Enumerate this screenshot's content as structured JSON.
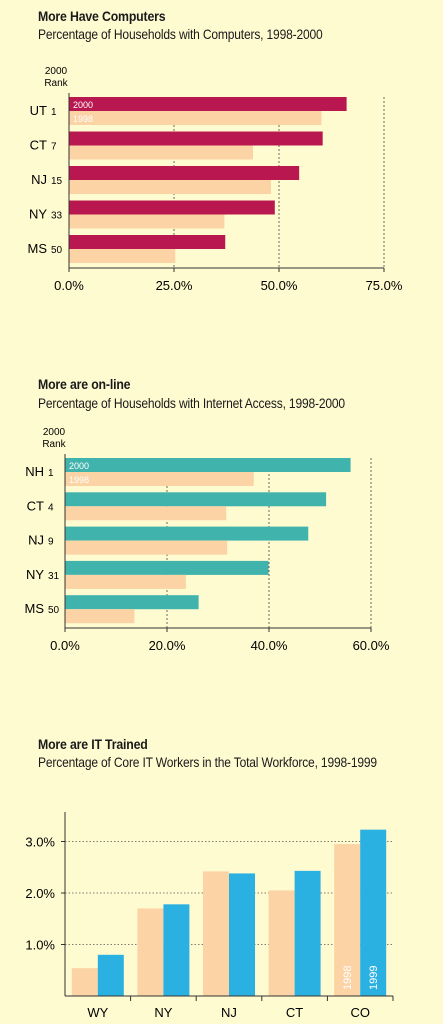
{
  "colors": {
    "background": "#fffbd1",
    "current": "#b8174f",
    "prior": "#fbd3a5",
    "internet": "#41b3ad",
    "it1999": "#2bb0e2"
  },
  "chart_data": [
    {
      "type": "bar",
      "orientation": "horizontal",
      "title": "More Have Computers",
      "subtitle": "Percentage of Households with Computers, 1998-2000",
      "rank_header": [
        "2000",
        "Rank"
      ],
      "categories": [
        "UT",
        "CT",
        "NJ",
        "NY",
        "MS"
      ],
      "ranks": [
        "1",
        "7",
        "15",
        "33",
        "50"
      ],
      "series": [
        {
          "name": "2000",
          "values": [
            66.1,
            60.4,
            54.8,
            49.0,
            37.2
          ]
        },
        {
          "name": "1998",
          "values": [
            60.1,
            43.8,
            48.1,
            37.0,
            25.3
          ]
        }
      ],
      "xticks": [
        "0.0%",
        "25.0%",
        "50.0%",
        "75.0%"
      ],
      "xlim": [
        0,
        75
      ],
      "gridlines": [
        25,
        50,
        75
      ]
    },
    {
      "type": "bar",
      "orientation": "horizontal",
      "title": "More are on-line",
      "subtitle": "Percentage of Households with Internet Access, 1998-2000",
      "rank_header": [
        "2000",
        "Rank"
      ],
      "categories": [
        "NH",
        "CT",
        "NJ",
        "NY",
        "MS"
      ],
      "ranks": [
        "1",
        "4",
        "9",
        "31",
        "50"
      ],
      "series": [
        {
          "name": "2000",
          "values": [
            56.0,
            51.2,
            47.7,
            39.9,
            26.2
          ]
        },
        {
          "name": "1998",
          "values": [
            37.0,
            31.6,
            31.8,
            23.7,
            13.6
          ]
        }
      ],
      "xticks": [
        "0.0%",
        "20.0%",
        "40.0%",
        "60.0%"
      ],
      "xlim": [
        0,
        60
      ],
      "gridlines": [
        20,
        40,
        60
      ]
    },
    {
      "type": "bar",
      "orientation": "vertical",
      "title": "More are IT Trained",
      "subtitle": "Percentage of Core IT Workers in the Total Workforce, 1998-1999",
      "categories": [
        "WY",
        "NY",
        "NJ",
        "CT",
        "CO"
      ],
      "series": [
        {
          "name": "1998",
          "values": [
            0.54,
            1.7,
            2.42,
            2.05,
            2.95
          ]
        },
        {
          "name": "1999",
          "values": [
            0.8,
            1.78,
            2.38,
            2.43,
            3.23
          ]
        }
      ],
      "yticks": [
        "1.0%",
        "2.0%",
        "3.0%"
      ],
      "ylim": [
        0,
        3.5
      ],
      "gridlines": [
        1,
        2,
        3
      ]
    }
  ]
}
